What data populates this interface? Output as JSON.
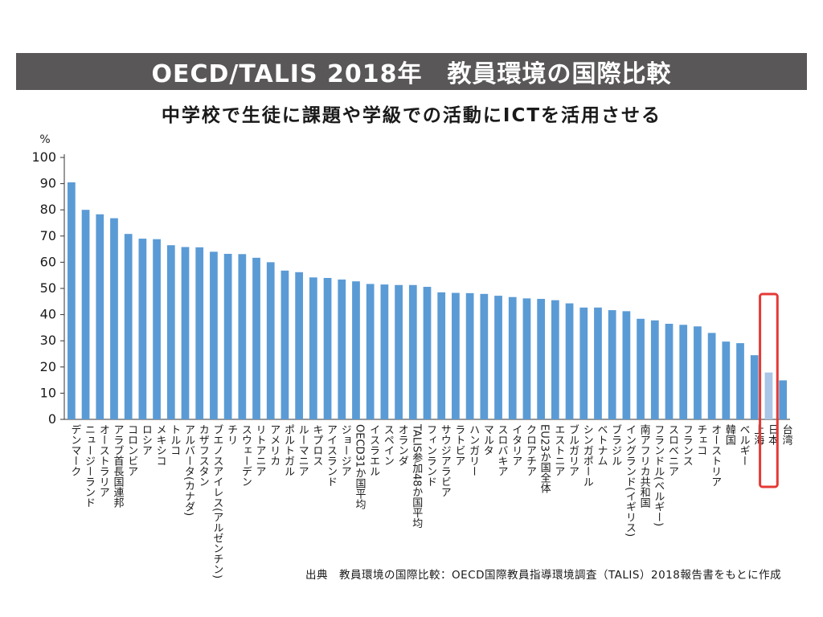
{
  "header": {
    "banner_title": "OECD/TALIS 2018年　教員環境の国際比較",
    "chart_title": "中学校で生徒に課題や学級での活動にICTを活用させる"
  },
  "footer": {
    "source": "出典　教員環境の国際比較：OECD国際教員指導環境調査（TALIS）2018報告書をもとに作成"
  },
  "colors": {
    "bar": "#5b9bd5",
    "highlight_bar": "#a9c6e6",
    "highlight_box": "#e53935",
    "banner_bg": "#5a5758"
  },
  "chart_data": {
    "type": "bar",
    "title": "中学校で生徒に課題や学級での活動にICTを活用させる",
    "xlabel": "",
    "ylabel": "%",
    "ylim": [
      0,
      100
    ],
    "yticks": [
      0,
      10,
      20,
      30,
      40,
      50,
      60,
      70,
      80,
      90,
      100
    ],
    "grid": false,
    "highlight_category": "日本",
    "categories": [
      "デンマーク",
      "ニュージーランド",
      "オーストラリア",
      "アラブ首長国連邦",
      "コロンビア",
      "ロシア",
      "メキシコ",
      "トルコ",
      "アルバータ(カナダ)",
      "カザフスタン",
      "ブエノスアイレス(アルゼンチン)",
      "チリ",
      "スウェーデン",
      "リトアニア",
      "アメリカ",
      "ポルトガル",
      "ルーマニア",
      "キプロス",
      "アイスランド",
      "ジョージア",
      "OECD31か国平均",
      "イスラエル",
      "スペイン",
      "オランダ",
      "TALIS参加48か国平均",
      "フィンランド",
      "サウジアラビア",
      "ラトビア",
      "ハンガリー",
      "マルタ",
      "スロバキア",
      "イタリア",
      "クロアチア",
      "EU23か国全体",
      "エストニア",
      "ブルガリア",
      "シンガポール",
      "ベトナム",
      "ブラジル",
      "イングランド(イギリス)",
      "南アフリカ共和国",
      "フランドル(ベルギー)",
      "スロベニア",
      "フランス",
      "チェコ",
      "オーストリア",
      "韓国",
      "ベルギー",
      "上海",
      "日本",
      "台湾"
    ],
    "values": [
      90.5,
      80,
      78.3,
      76.8,
      70.8,
      69,
      68.8,
      66.5,
      65.8,
      65.7,
      64,
      63.2,
      63.1,
      61.7,
      60,
      56.8,
      56.2,
      54.2,
      54,
      53.4,
      52.7,
      51.7,
      51.5,
      51.3,
      51.3,
      50.6,
      48.5,
      48.3,
      48.2,
      47.9,
      47.2,
      46.7,
      46.2,
      46,
      45.5,
      44.3,
      42.7,
      42.7,
      41.7,
      41.3,
      38.4,
      37.8,
      36.5,
      36.1,
      35.5,
      33,
      29.7,
      29.1,
      24.5,
      17.9,
      14.9
    ]
  }
}
